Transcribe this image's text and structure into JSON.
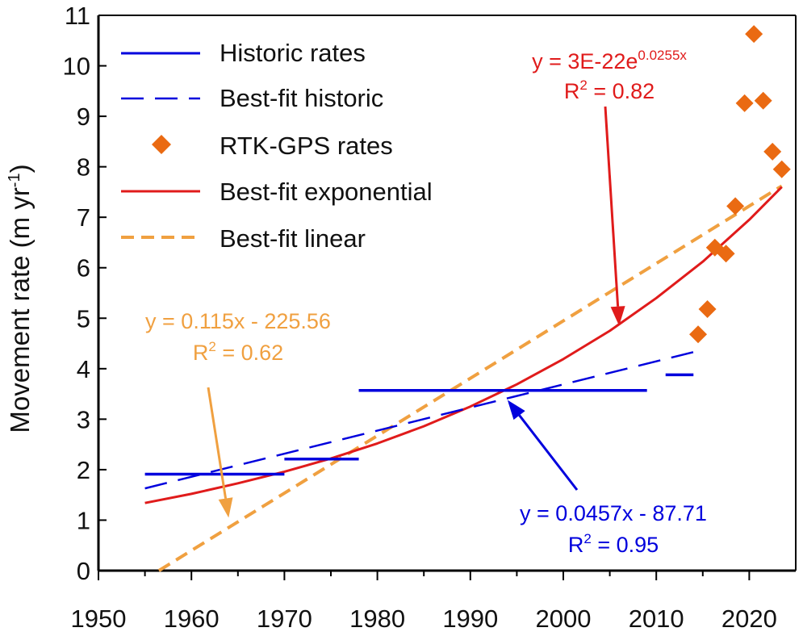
{
  "chart_data": {
    "type": "line",
    "title": "",
    "xlabel": "",
    "ylabel": "Movement rate (m yr⁻¹)",
    "xlim": [
      1950,
      2025
    ],
    "ylim": [
      0,
      11
    ],
    "xticks": [
      1950,
      1960,
      1970,
      1980,
      1990,
      2000,
      2010,
      2020
    ],
    "yticks": [
      0,
      1,
      2,
      3,
      4,
      5,
      6,
      7,
      8,
      9,
      10,
      11
    ],
    "grid": false,
    "legend_position": "top-left",
    "series": [
      {
        "name": "Historic rates",
        "kind": "step-segments",
        "color": "#0000dd",
        "segments": [
          {
            "x0": 1955,
            "x1": 1970,
            "y": 1.91
          },
          {
            "x0": 1970,
            "x1": 1978,
            "y": 2.21
          },
          {
            "x0": 1978,
            "x1": 2009,
            "y": 3.57
          },
          {
            "x0": 2011,
            "x1": 2014,
            "y": 3.88
          }
        ]
      },
      {
        "name": "Best-fit historic",
        "kind": "line",
        "style": "long-dash",
        "color": "#0000dd",
        "x": [
          1955,
          2014
        ],
        "y": [
          1.63,
          4.33
        ]
      },
      {
        "name": "RTK-GPS rates",
        "kind": "scatter",
        "marker": "diamond",
        "color": "#ea6a12",
        "x": [
          2014.5,
          2015.5,
          2016.3,
          2017.5,
          2018.5,
          2019.5,
          2020.5,
          2021.5,
          2022.5,
          2023.5
        ],
        "y": [
          4.68,
          5.18,
          6.4,
          6.28,
          7.22,
          9.26,
          10.63,
          9.31,
          8.3,
          7.95
        ]
      },
      {
        "name": "Best-fit exponential",
        "kind": "line",
        "style": "solid",
        "color": "#e01b1b",
        "x": [
          1955,
          1960,
          1965,
          1970,
          1975,
          1980,
          1985,
          1990,
          1995,
          2000,
          2005,
          2010,
          2015,
          2020,
          2023.5
        ],
        "y": [
          1.34,
          1.52,
          1.73,
          1.96,
          2.22,
          2.52,
          2.86,
          3.25,
          3.69,
          4.19,
          4.75,
          5.4,
          6.12,
          6.95,
          7.6
        ]
      },
      {
        "name": "Best-fit linear",
        "kind": "line",
        "style": "dashed",
        "color": "#f0a040",
        "x": [
          1956.5,
          2023.5
        ],
        "y": [
          0.0,
          7.62
        ]
      }
    ],
    "annotations": [
      {
        "id": "exp",
        "line1_base": "y = 3E-22e",
        "line1_sup": "0.0255x",
        "line2_base": "R",
        "line2_sup": "2",
        "line2_tail": " = 0.82",
        "color": "#e01b1b",
        "target": {
          "x": 2006,
          "y": 4.85
        }
      },
      {
        "id": "lin",
        "line1": "y = 0.115x - 225.56",
        "line2_base": "R",
        "line2_sup": "2",
        "line2_tail": " = 0.62",
        "color": "#f0a040",
        "target": {
          "x": 1964,
          "y": 1.05
        }
      },
      {
        "id": "hist",
        "line1": "y = 0.0457x - 87.71",
        "line2_base": "R",
        "line2_sup": "2",
        "line2_tail": " = 0.95",
        "color": "#0000dd",
        "target": {
          "x": 1994,
          "y": 3.38
        }
      }
    ],
    "ylabel_parts": {
      "base": "Movement rate (m yr",
      "sup": "-1",
      "tail": ")"
    }
  }
}
